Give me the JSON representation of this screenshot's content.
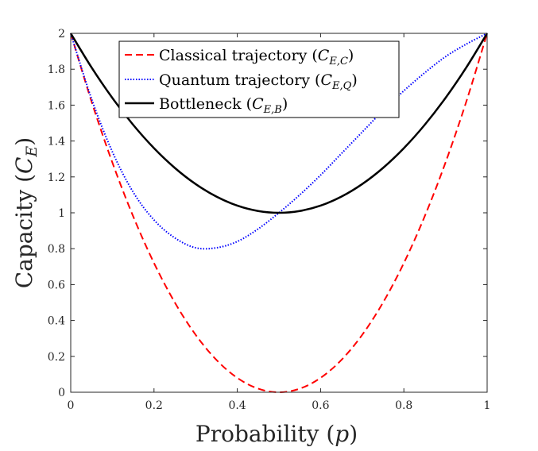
{
  "chart_data": {
    "type": "line",
    "xlabel": "Probability (p)",
    "ylabel": "Capacity (C_E)",
    "xlim": [
      0,
      1
    ],
    "ylim": [
      0,
      2
    ],
    "x_ticks": [
      "0",
      "0.2",
      "0.4",
      "0.6",
      "0.8",
      "1"
    ],
    "y_ticks": [
      "0",
      "0.2",
      "0.4",
      "0.6",
      "0.8",
      "1",
      "1.2",
      "1.4",
      "1.6",
      "1.8",
      "2"
    ],
    "grid": false,
    "legend_position": "top-center",
    "x": [
      0,
      0.05,
      0.1,
      0.15,
      0.2,
      0.25,
      0.3,
      0.35,
      0.4,
      0.45,
      0.5,
      0.55,
      0.6,
      0.65,
      0.7,
      0.75,
      0.8,
      0.85,
      0.9,
      0.95,
      1
    ],
    "series": [
      {
        "name": "Classical trajectory (C_{E,C})",
        "style": "dashed",
        "color": "#ff0000",
        "values": [
          2.0,
          1.62,
          1.28,
          0.98,
          0.72,
          0.5,
          0.32,
          0.18,
          0.08,
          0.02,
          0.0,
          0.02,
          0.08,
          0.18,
          0.32,
          0.5,
          0.72,
          0.98,
          1.28,
          1.62,
          2.0
        ]
      },
      {
        "name": "Quantum trajectory (C_{E,Q})",
        "style": "dotted",
        "color": "#0000ff",
        "values": [
          2.0,
          1.635,
          1.34,
          1.115,
          0.96,
          0.86,
          0.805,
          0.805,
          0.84,
          0.91,
          1.0,
          1.1,
          1.21,
          1.33,
          1.45,
          1.57,
          1.68,
          1.78,
          1.87,
          1.94,
          2.0
        ]
      },
      {
        "name": "Bottleneck (C_{E,B})",
        "style": "solid",
        "color": "#000000",
        "values": [
          2.0,
          1.81,
          1.64,
          1.49,
          1.36,
          1.25,
          1.16,
          1.09,
          1.04,
          1.01,
          1.0,
          1.01,
          1.04,
          1.09,
          1.16,
          1.25,
          1.36,
          1.49,
          1.64,
          1.81,
          2.0
        ]
      }
    ]
  }
}
